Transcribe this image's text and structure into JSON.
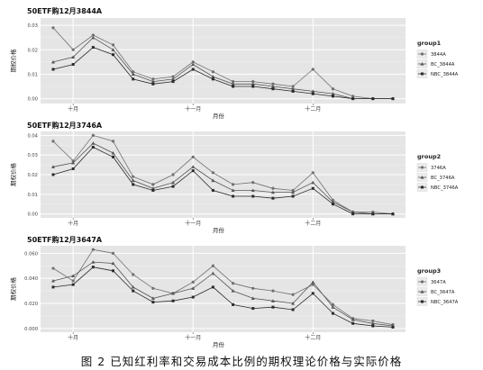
{
  "figure_caption": "图 2   已知红利率和交易成本比例的期权理论价格与实际价格",
  "chart_data": [
    {
      "type": "line",
      "title": "50ETF购12月3844A",
      "xlabel": "月份",
      "ylabel": "期权价格",
      "x_tick_labels": [
        "十月",
        "十一月",
        "十二月"
      ],
      "y_ticks": [
        0.0,
        0.01,
        0.02,
        0.03
      ],
      "y_tick_labels": [
        "0.00",
        "0.01",
        "0.02",
        "0.03"
      ],
      "ylim": [
        -0.002,
        0.033
      ],
      "grid": true,
      "legend_title": "group1",
      "legend_position": "right",
      "series": [
        {
          "name": "3844A",
          "values": [
            0.029,
            0.02,
            0.026,
            0.022,
            0.011,
            0.008,
            0.009,
            0.015,
            0.011,
            0.007,
            0.007,
            0.006,
            0.005,
            0.012,
            0.004,
            0.001,
            0.0,
            0.0
          ]
        },
        {
          "name": "BC_3844A",
          "values": [
            0.015,
            0.017,
            0.025,
            0.02,
            0.01,
            0.007,
            0.008,
            0.014,
            0.009,
            0.006,
            0.006,
            0.005,
            0.004,
            0.003,
            0.002,
            0.0,
            0.0,
            0.0
          ]
        },
        {
          "name": "NBC_3844A",
          "values": [
            0.012,
            0.014,
            0.021,
            0.018,
            0.008,
            0.006,
            0.007,
            0.012,
            0.008,
            0.005,
            0.005,
            0.004,
            0.003,
            0.002,
            0.001,
            0.0,
            0.0,
            0.0
          ]
        }
      ]
    },
    {
      "type": "line",
      "title": "50ETF购12月3746A",
      "xlabel": "月份",
      "ylabel": "期权价格",
      "x_tick_labels": [
        "十月",
        "十一月",
        "十二月"
      ],
      "y_ticks": [
        0.0,
        0.01,
        0.02,
        0.03,
        0.04
      ],
      "y_tick_labels": [
        "0.00",
        "0.01",
        "0.02",
        "0.03",
        "0.04"
      ],
      "ylim": [
        -0.002,
        0.042
      ],
      "grid": true,
      "legend_title": "group2",
      "legend_position": "right",
      "series": [
        {
          "name": "3746A",
          "values": [
            0.037,
            0.027,
            0.04,
            0.037,
            0.019,
            0.015,
            0.02,
            0.029,
            0.021,
            0.015,
            0.016,
            0.013,
            0.012,
            0.021,
            0.007,
            0.001,
            0.001,
            0.0
          ]
        },
        {
          "name": "BC_3746A",
          "values": [
            0.024,
            0.026,
            0.036,
            0.031,
            0.017,
            0.013,
            0.016,
            0.024,
            0.017,
            0.012,
            0.012,
            0.011,
            0.011,
            0.016,
            0.006,
            0.001,
            0.0,
            0.0
          ]
        },
        {
          "name": "NBC_3746A",
          "values": [
            0.02,
            0.023,
            0.034,
            0.029,
            0.015,
            0.012,
            0.014,
            0.022,
            0.012,
            0.009,
            0.009,
            0.008,
            0.009,
            0.013,
            0.005,
            0.0,
            0.0,
            0.0
          ]
        }
      ]
    },
    {
      "type": "line",
      "title": "50ETF购12月3647A",
      "xlabel": "月份",
      "ylabel": "期权价格",
      "x_tick_labels": [
        "十月",
        "十一月",
        "十二月"
      ],
      "y_ticks": [
        0.0,
        0.02,
        0.04,
        0.06
      ],
      "y_tick_labels": [
        "0.000",
        "0.020",
        "0.040",
        "0.060"
      ],
      "ylim": [
        -0.003,
        0.066
      ],
      "grid": true,
      "legend_title": "group3",
      "legend_position": "right",
      "series": [
        {
          "name": "3647A",
          "values": [
            0.048,
            0.038,
            0.063,
            0.06,
            0.043,
            0.032,
            0.028,
            0.037,
            0.05,
            0.036,
            0.032,
            0.03,
            0.027,
            0.035,
            0.019,
            0.008,
            0.006,
            0.003
          ]
        },
        {
          "name": "BC_3647A",
          "values": [
            0.038,
            0.042,
            0.053,
            0.052,
            0.033,
            0.024,
            0.028,
            0.032,
            0.044,
            0.03,
            0.024,
            0.022,
            0.02,
            0.037,
            0.017,
            0.007,
            0.004,
            0.002
          ]
        },
        {
          "name": "NBC_3647A",
          "values": [
            0.033,
            0.035,
            0.049,
            0.046,
            0.03,
            0.021,
            0.022,
            0.025,
            0.033,
            0.019,
            0.016,
            0.017,
            0.015,
            0.028,
            0.012,
            0.004,
            0.002,
            0.001
          ]
        }
      ]
    }
  ]
}
